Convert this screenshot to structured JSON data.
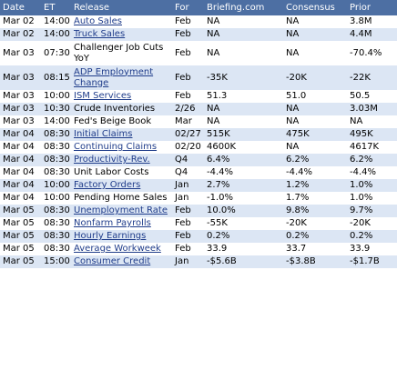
{
  "columns": [
    "Date",
    "ET",
    "Release",
    "For",
    "Briefing.com",
    "Consensus",
    "Prior"
  ],
  "rows": [
    {
      "date": "Mar 02",
      "et": "14:00",
      "release": "Auto Sales",
      "link": true,
      "for": "Feb",
      "briefing": "NA",
      "consensus": "NA",
      "prior": "3.8M",
      "h": 14
    },
    {
      "date": "Mar 02",
      "et": "14:00",
      "release": "Truck Sales",
      "link": true,
      "for": "Feb",
      "briefing": "NA",
      "consensus": "NA",
      "prior": "4.4M",
      "h": 14
    },
    {
      "date": "Mar 03",
      "et": "07:30",
      "release": "Challenger Job Cuts YoY",
      "link": false,
      "for": "Feb",
      "briefing": "NA",
      "consensus": "NA",
      "prior": "-70.4%",
      "h": 27
    },
    {
      "date": "Mar 03",
      "et": "08:15",
      "release": "ADP Employment Change",
      "link": true,
      "for": "Feb",
      "briefing": "-35K",
      "consensus": "-20K",
      "prior": "-22K",
      "h": 27
    },
    {
      "date": "Mar 03",
      "et": "10:00",
      "release": "ISM Services",
      "link": true,
      "for": "Feb",
      "briefing": "51.3",
      "consensus": "51.0",
      "prior": "50.5",
      "h": 14
    },
    {
      "date": "Mar 03",
      "et": "10:30",
      "release": "Crude Inventories",
      "link": false,
      "for": "2/26",
      "briefing": "NA",
      "consensus": "NA",
      "prior": "3.03M",
      "h": 14
    },
    {
      "date": "Mar 03",
      "et": "14:00",
      "release": "Fed's Beige Book",
      "link": false,
      "for": "Mar",
      "briefing": "NA",
      "consensus": "NA",
      "prior": "NA",
      "h": 14
    },
    {
      "date": "Mar 04",
      "et": "08:30",
      "release": "Initial Claims",
      "link": true,
      "for": "02/27",
      "briefing": "515K",
      "consensus": "475K",
      "prior": "495K",
      "h": 14
    },
    {
      "date": "Mar 04",
      "et": "08:30",
      "release": "Continuing Claims",
      "link": true,
      "for": "02/20",
      "briefing": "4600K",
      "consensus": "NA",
      "prior": "4617K",
      "h": 14
    },
    {
      "date": "Mar 04",
      "et": "08:30",
      "release": "Productivity-Rev.",
      "link": true,
      "for": "Q4",
      "briefing": "6.4%",
      "consensus": "6.2%",
      "prior": "6.2%",
      "h": 14
    },
    {
      "date": "Mar 04",
      "et": "08:30",
      "release": "Unit Labor Costs",
      "link": false,
      "for": "Q4",
      "briefing": "-4.4%",
      "consensus": "-4.4%",
      "prior": "-4.4%",
      "h": 14
    },
    {
      "date": "Mar 04",
      "et": "10:00",
      "release": "Factory Orders",
      "link": true,
      "for": "Jan",
      "briefing": "2.7%",
      "consensus": "1.2%",
      "prior": "1.0%",
      "h": 14
    },
    {
      "date": "Mar 04",
      "et": "10:00",
      "release": "Pending Home Sales",
      "link": false,
      "for": "Jan",
      "briefing": "-1.0%",
      "consensus": "1.7%",
      "prior": "1.0%",
      "h": 14
    },
    {
      "date": "Mar 05",
      "et": "08:30",
      "release": "Unemployment Rate",
      "link": true,
      "for": "Feb",
      "briefing": "10.0%",
      "consensus": "9.8%",
      "prior": "9.7%",
      "h": 14
    },
    {
      "date": "Mar 05",
      "et": "08:30",
      "release": "Nonfarm Payrolls",
      "link": true,
      "for": "Feb",
      "briefing": "-55K",
      "consensus": "-20K",
      "prior": "-20K",
      "h": 14
    },
    {
      "date": "Mar 05",
      "et": "08:30",
      "release": "Hourly Earnings",
      "link": true,
      "for": "Feb",
      "briefing": "0.2%",
      "consensus": "0.2%",
      "prior": "0.2%",
      "h": 14
    },
    {
      "date": "Mar 05",
      "et": "08:30",
      "release": "Average Workweek",
      "link": true,
      "for": "Feb",
      "briefing": "33.9",
      "consensus": "33.7",
      "prior": "33.9",
      "h": 14
    },
    {
      "date": "Mar 05",
      "et": "15:00",
      "release": "Consumer Credit",
      "link": true,
      "for": "Jan",
      "briefing": "-$5.6B",
      "consensus": "-$3.8B",
      "prior": "-$1.7B",
      "h": 14
    }
  ],
  "colors": {
    "header_bg": "#4d6fa3",
    "row_alt_bg": "#dce6f4",
    "link": "#1f3c8a"
  }
}
